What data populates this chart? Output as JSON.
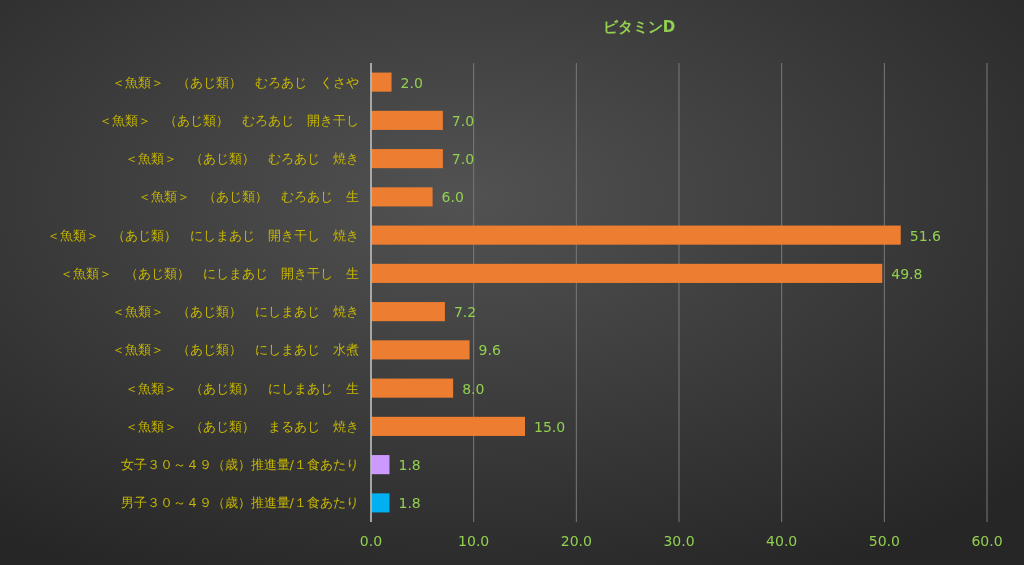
{
  "chart_data": {
    "type": "bar",
    "orientation": "horizontal",
    "title": "ビタミンD",
    "categories": [
      "＜魚類＞　（あじ類）　むろあじ　くさや",
      "＜魚類＞　（あじ類）　むろあじ　開き干し",
      "＜魚類＞　（あじ類）　むろあじ　焼き",
      "＜魚類＞　（あじ類）　むろあじ　生",
      "＜魚類＞　（あじ類）　にしまあじ　開き干し　焼き",
      "＜魚類＞　（あじ類）　にしまあじ　開き干し　生",
      "＜魚類＞　（あじ類）　にしまあじ　焼き",
      "＜魚類＞　（あじ類）　にしまあじ　水煮",
      "＜魚類＞　（あじ類）　にしまあじ　生",
      "＜魚類＞　（あじ類）　まるあじ　焼き",
      "女子３０～４９（歳）推進量/１食あたり",
      "男子３０～４９（歳）推進量/１食あたり"
    ],
    "values": [
      2.0,
      7.0,
      7.0,
      6.0,
      51.6,
      49.8,
      7.2,
      9.6,
      8.0,
      15.0,
      1.8,
      1.8
    ],
    "value_labels": [
      "2.0",
      "7.0",
      "7.0",
      "6.0",
      "51.6",
      "49.8",
      "7.2",
      "9.6",
      "8.0",
      "15.0",
      "1.8",
      "1.8"
    ],
    "colors": [
      "#ed7d31",
      "#ed7d31",
      "#ed7d31",
      "#ed7d31",
      "#ed7d31",
      "#ed7d31",
      "#ed7d31",
      "#ed7d31",
      "#ed7d31",
      "#ed7d31",
      "#cc99ff",
      "#00b0f0"
    ],
    "xlim": [
      0,
      60
    ],
    "xticks": [
      {
        "value": 0,
        "label": "0.0"
      },
      {
        "value": 10,
        "label": "10.0"
      },
      {
        "value": 20,
        "label": "20.0"
      },
      {
        "value": 30,
        "label": "30.0"
      },
      {
        "value": 40,
        "label": "40.0"
      },
      {
        "value": 50,
        "label": "50.0"
      },
      {
        "value": 60,
        "label": "60.0"
      }
    ],
    "grid": "x"
  }
}
